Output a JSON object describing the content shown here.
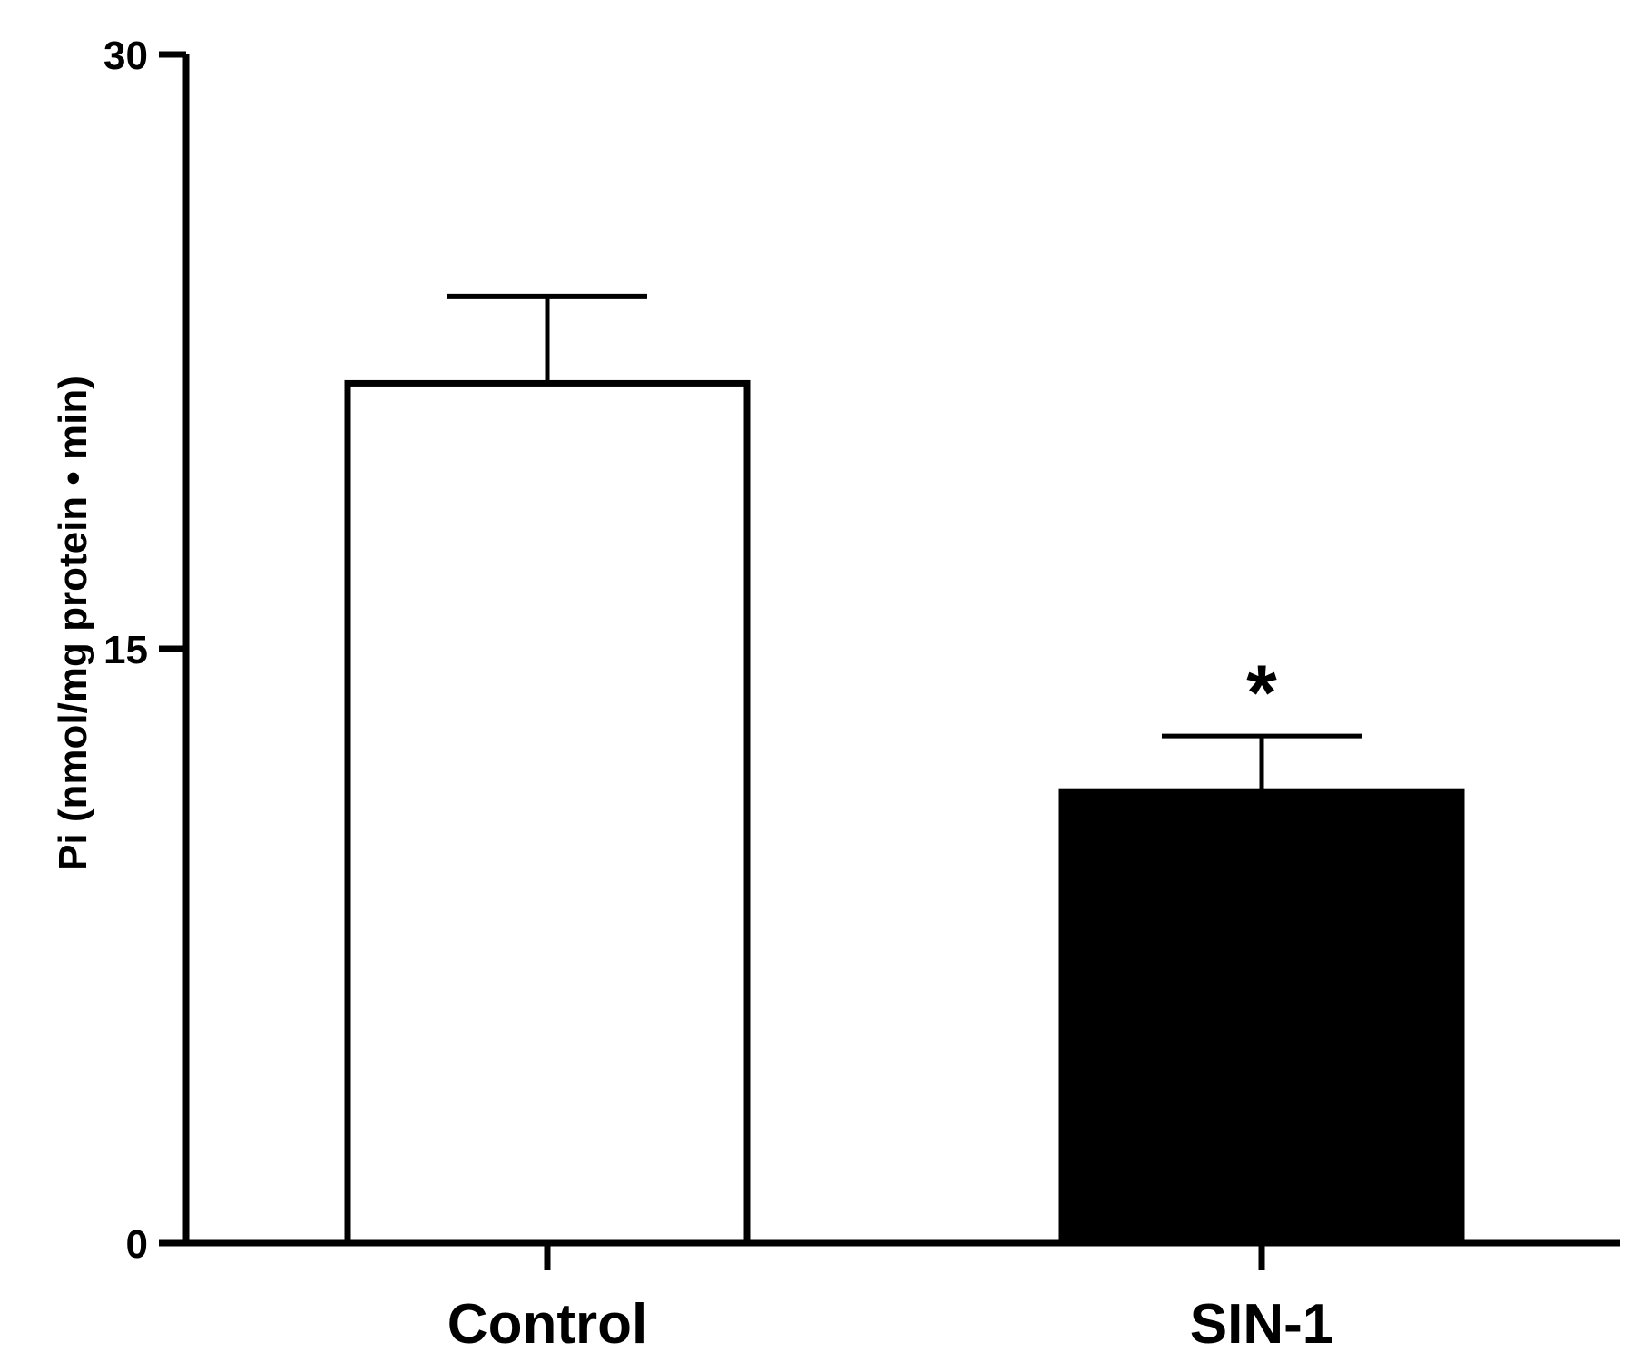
{
  "chart_data": {
    "type": "bar",
    "title": "",
    "xlabel": "",
    "ylabel": "Pi (nmol/mg protein • min)",
    "ylim": [
      0,
      30
    ],
    "yticks": [
      0,
      15,
      30
    ],
    "yticklabels": [
      "0",
      "15",
      "30"
    ],
    "categories": [
      "Control",
      "SIN-1"
    ],
    "values": [
      21.7,
      11.4
    ],
    "errors": [
      2.2,
      1.4
    ],
    "bar_fill": [
      "#ffffff",
      "#000000"
    ],
    "bar_stroke": "#000000",
    "annotations": [
      {
        "category": "SIN-1",
        "text": "*"
      }
    ],
    "grid": false,
    "legend": "none"
  }
}
